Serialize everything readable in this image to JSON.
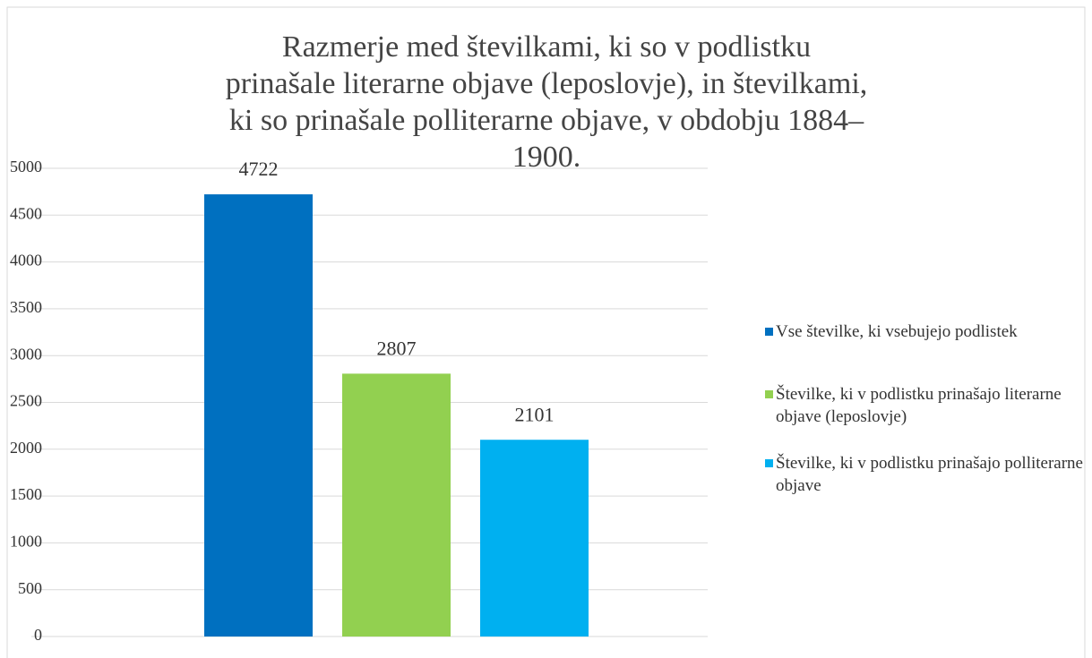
{
  "chart_data": {
    "type": "bar",
    "title": "Razmerje med številkami, ki so v podlistku prinašale literarne objave (leposlovje), in številkami, ki so prinašale polliterarne objave, v obdobju 1884–1900.",
    "categories": [
      null
    ],
    "series": [
      {
        "name": "Vse številke, ki vsebujejo podlistek",
        "color": "#0070c0",
        "values": [
          4722
        ]
      },
      {
        "name": "Številke, ki v podlistku prinašajo literarne objave (leposlovje)",
        "color": "#92d050",
        "values": [
          2807
        ]
      },
      {
        "name": "Številke, ki v podlistku prinašajo polliterarne objave",
        "color": "#00b0f0",
        "values": [
          2101
        ]
      }
    ],
    "ylim": [
      0,
      5000
    ],
    "yticks": [
      0,
      500,
      1000,
      1500,
      2000,
      2500,
      3000,
      3500,
      4000,
      4500,
      5000
    ],
    "grid": true,
    "legend": "right"
  }
}
